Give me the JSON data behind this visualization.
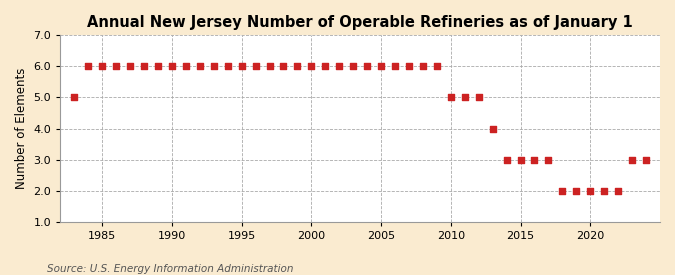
{
  "title": "Annual New Jersey Number of Operable Refineries as of January 1",
  "ylabel": "Number of Elements",
  "source": "Source: U.S. Energy Information Administration",
  "years": [
    1983,
    1984,
    1985,
    1986,
    1987,
    1988,
    1989,
    1990,
    1991,
    1992,
    1993,
    1994,
    1995,
    1996,
    1997,
    1998,
    1999,
    2000,
    2001,
    2002,
    2003,
    2004,
    2005,
    2006,
    2007,
    2008,
    2009,
    2010,
    2011,
    2012,
    2013,
    2014,
    2015,
    2016,
    2017,
    2018,
    2019,
    2020,
    2021,
    2022,
    2023,
    2024
  ],
  "values": [
    5,
    6,
    6,
    6,
    6,
    6,
    6,
    6,
    6,
    6,
    6,
    6,
    6,
    6,
    6,
    6,
    6,
    6,
    6,
    6,
    6,
    6,
    6,
    6,
    6,
    6,
    6,
    5,
    5,
    5,
    4,
    3,
    3,
    3,
    3,
    2,
    2,
    2,
    2,
    2,
    3,
    3
  ],
  "marker_color": "#cc2222",
  "marker_size": 4,
  "background_color": "#faebd0",
  "plot_bg_color": "#ffffff",
  "grid_color": "#aaaaaa",
  "grid_style": "--",
  "ylim": [
    1.0,
    7.0
  ],
  "yticks": [
    1.0,
    2.0,
    3.0,
    4.0,
    5.0,
    6.0,
    7.0
  ],
  "xlim": [
    1982,
    2025
  ],
  "xticks": [
    1985,
    1990,
    1995,
    2000,
    2005,
    2010,
    2015,
    2020
  ],
  "title_fontsize": 10.5,
  "axis_label_fontsize": 8.5,
  "tick_fontsize": 8,
  "source_fontsize": 7.5
}
